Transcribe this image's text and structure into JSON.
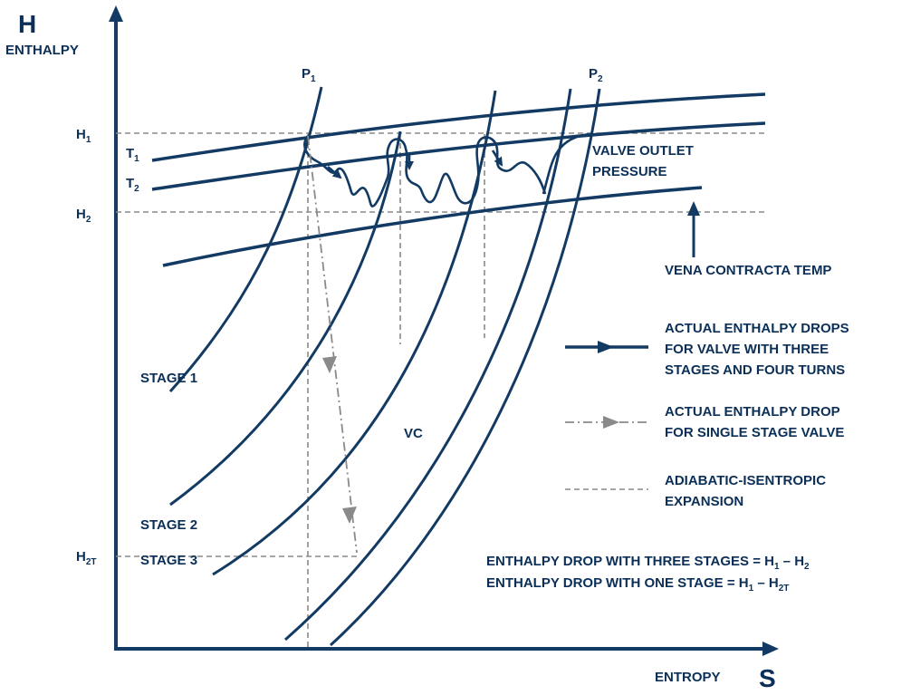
{
  "axes": {
    "y_letter": "H",
    "y_label": "ENTHALPY",
    "x_label": "ENTROPY",
    "x_letter": "S"
  },
  "levels": {
    "h1": {
      "main": "H",
      "sub": "1"
    },
    "h2": {
      "main": "H",
      "sub": "2"
    },
    "h2t": {
      "main": "H",
      "sub": "2T"
    }
  },
  "temperatures": {
    "t1": {
      "main": "T",
      "sub": "1"
    },
    "t2": {
      "main": "T",
      "sub": "2"
    }
  },
  "pressures": {
    "p1": {
      "main": "P",
      "sub": "1"
    },
    "p2": {
      "main": "P",
      "sub": "2"
    }
  },
  "curve_labels": {
    "valve_outlet_1": "VALVE OUTLET",
    "valve_outlet_2": "PRESSURE",
    "vena_contracta": "VENA CONTRACTA TEMP",
    "stage1": "STAGE 1",
    "stage2": "STAGE 2",
    "stage3": "STAGE 3",
    "vc": "VC"
  },
  "legend": {
    "actual_multi": [
      "ACTUAL ENTHALPY DROPS",
      "FOR VALVE WITH THREE",
      "STAGES AND FOUR TURNS"
    ],
    "actual_single": [
      "ACTUAL ENTHALPY DROP",
      "FOR SINGLE STAGE VALVE"
    ],
    "adiabatic": [
      "ADIABATIC-ISENTROPIC",
      "EXPANSION"
    ]
  },
  "equations": {
    "three_stages": {
      "text": "ENTHALPY DROP WITH THREE STAGES = H",
      "s1": "1",
      "mid": " – H",
      "s2": "2"
    },
    "one_stage": {
      "text": "ENTHALPY DROP WITH ONE STAGE = H",
      "s1": "1",
      "mid": " – H",
      "s2": "2T"
    }
  },
  "colors": {
    "navy": "#123a63",
    "label": "#0b2f57",
    "gray": "#8a8a8a"
  }
}
